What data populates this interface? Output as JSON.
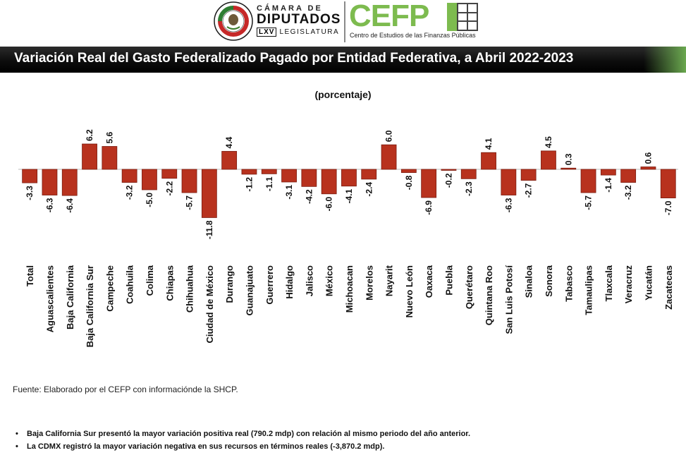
{
  "header": {
    "camara_top": "CÁMARA DE",
    "camara_main": "DIPUTADOS",
    "lxv": "LXV",
    "legislatura": "LEGISLATURA",
    "cefp_logo": "CEFP",
    "cefp_subtitle": "Centro de Estudios de las Finanzas Públicas"
  },
  "colors": {
    "bar_fill": "#b8321e",
    "bar_stroke": "#7a1c10",
    "accent_green": "#7dbb4f",
    "title_bg": "#000000"
  },
  "chart_data": {
    "type": "bar",
    "title": "Variación Real del Gasto Federalizado Pagado por Entidad Federativa, a Abril 2022-2023",
    "subtitle": "(porcentaje)",
    "categories": [
      "Total",
      "Aguascalientes",
      "Baja California",
      "Baja California Sur",
      "Campeche",
      "Coahuila",
      "Colima",
      "Chiapas",
      "Chihuahua",
      "Ciudad de México",
      "Durango",
      "Guanajuato",
      "Guerrero",
      "Hidalgo",
      "Jalisco",
      "México",
      "Michoacan",
      "Morelos",
      "Nayarit",
      "Nuevo León",
      "Oaxaca",
      "Puebla",
      "Querétaro",
      "Quintana Roo",
      "San Luis Potosí",
      "Sinaloa",
      "Sonora",
      "Tabasco",
      "Tamaulipas",
      "Tlaxcala",
      "Veracruz",
      "Yucatán",
      "Zacatecas"
    ],
    "values": [
      -3.3,
      -6.3,
      -6.4,
      6.2,
      5.6,
      -3.2,
      -5.0,
      -2.2,
      -5.7,
      -11.8,
      4.4,
      -1.2,
      -1.1,
      -3.1,
      -4.2,
      -6.0,
      -4.1,
      -2.4,
      6.0,
      -0.8,
      -6.9,
      -0.2,
      -2.3,
      4.1,
      -6.3,
      -2.7,
      4.5,
      0.3,
      -5.7,
      -1.4,
      -3.2,
      0.6,
      -7.0
    ],
    "value_labels": [
      "-3.3",
      "-6.3",
      "-6.4",
      "6.2",
      "5.6",
      "-3.2",
      "-5.0",
      "-2.2",
      "-5.7",
      "-11.8",
      "4.4",
      "-1.2",
      "-1.1",
      "-3.1",
      "-4.2",
      "-6.0",
      "-4.1",
      "-2.4",
      "6.0",
      "-0.8",
      "-6.9",
      "-0.2",
      "-2.3",
      "4.1",
      "-6.3",
      "-2.7",
      "4.5",
      "0.3",
      "-5.7",
      "-1.4",
      "-3.2",
      "0.6",
      "-7.0"
    ],
    "ylim": [
      -11.8,
      6.2
    ],
    "grid": false,
    "legend": "none",
    "xlabel": "",
    "ylabel": ""
  },
  "source": "Fuente: Elaborado por el CEFP con informaciónde la SHCP.",
  "notes": [
    "Baja California Sur presentó la mayor variación positiva real (790.2 mdp) con relación al mismo periodo del año anterior.",
    "La CDMX registró la mayor variación negativa en sus recursos en términos reales (-3,870.2 mdp)."
  ],
  "bullet": "•"
}
